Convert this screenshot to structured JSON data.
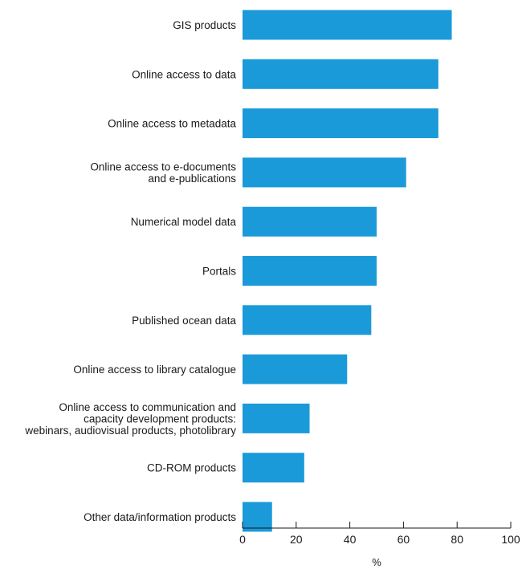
{
  "chart_data": {
    "type": "bar",
    "orientation": "horizontal",
    "title": "",
    "xlabel": "%",
    "ylabel": "",
    "xlim": [
      0,
      100
    ],
    "xticks": [
      0,
      20,
      40,
      60,
      80,
      100
    ],
    "grid": false,
    "legend": "none",
    "bar_color": "#1a9ad9",
    "categories": [
      [
        "GIS products"
      ],
      [
        "Online access to data"
      ],
      [
        "Online access to metadata"
      ],
      [
        "Online access to e-documents",
        "and e-publications"
      ],
      [
        "Numerical model data"
      ],
      [
        "Portals"
      ],
      [
        "Published ocean data"
      ],
      [
        "Online access to library catalogue"
      ],
      [
        "Online access to communication and",
        "capacity development products:",
        "webinars, audiovisual products, photolibrary"
      ],
      [
        "CD-ROM products"
      ],
      [
        "Other data/information products"
      ]
    ],
    "values": [
      78,
      73,
      73,
      61,
      50,
      50,
      48,
      39,
      25,
      23,
      11
    ]
  }
}
